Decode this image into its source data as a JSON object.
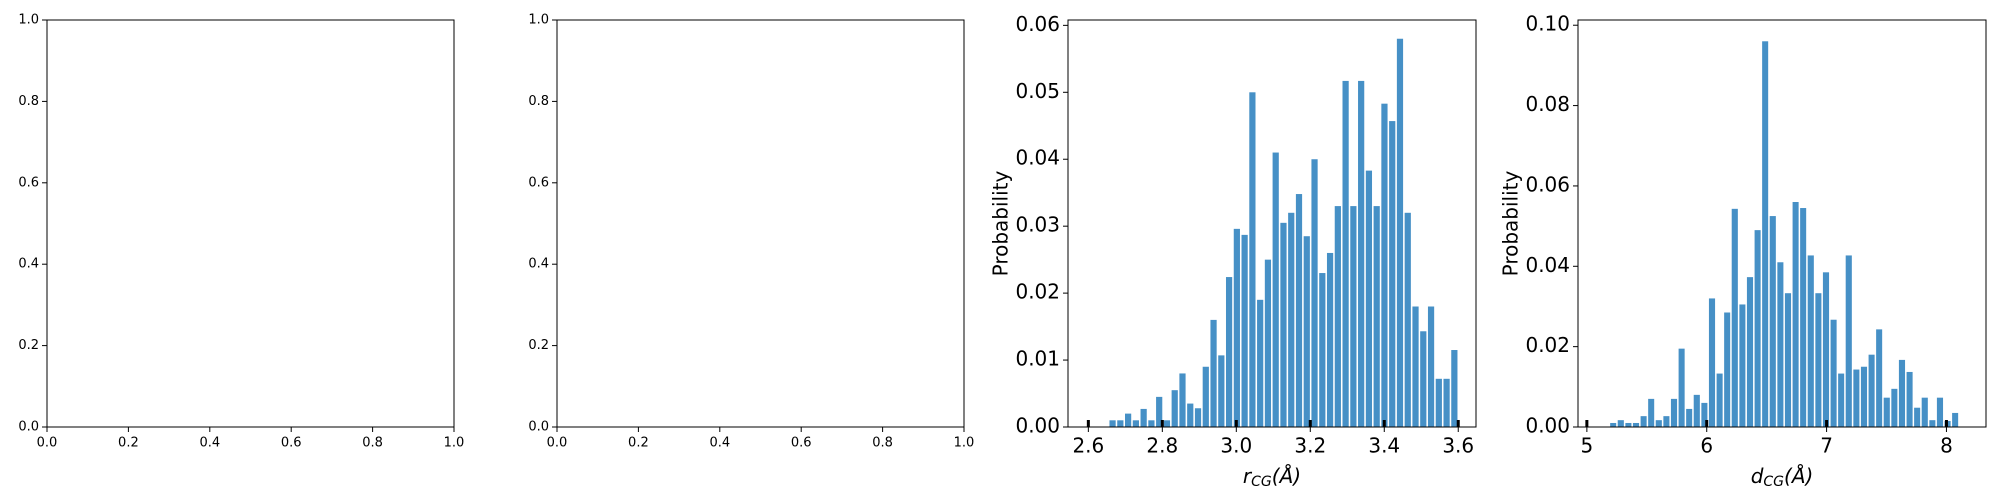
{
  "chart_data": [
    {
      "type": "empty",
      "xlim": [
        0,
        1
      ],
      "ylim": [
        0,
        1
      ],
      "xticks": [
        {
          "value": 0,
          "label": "0.0"
        },
        0.2,
        0.4,
        0.6,
        0.8,
        {
          "value": 1,
          "label": "1.0"
        }
      ],
      "yticks": [
        {
          "value": 0,
          "label": "0.0"
        },
        0.2,
        0.4,
        0.6,
        0.8,
        {
          "value": 1,
          "label": "1.0"
        }
      ]
    },
    {
      "type": "empty",
      "xlim": [
        0,
        1
      ],
      "ylim": [
        0,
        1
      ],
      "xticks": [
        {
          "value": 0,
          "label": "0.0"
        },
        0.2,
        0.4,
        0.6,
        0.8,
        {
          "value": 1,
          "label": "1.0"
        }
      ],
      "yticks": [
        {
          "value": 0,
          "label": "0.0"
        },
        0.2,
        0.4,
        0.6,
        0.8,
        {
          "value": 1,
          "label": "1.0"
        }
      ]
    },
    {
      "type": "histogram",
      "color": "#4690c6",
      "xlabel": {
        "base": "r",
        "sub": "CG",
        "rest": "(Å)"
      },
      "ylabel": "Probability",
      "xlim": [
        2.545,
        3.648
      ],
      "ylim": [
        0,
        0.0608
      ],
      "xticks": [
        2.6,
        2.8,
        {
          "value": 3,
          "label": "3.0"
        },
        3.2,
        3.4,
        3.6
      ],
      "yticks": [
        {
          "value": 0,
          "label": "0.00"
        },
        0.01,
        0.02,
        0.03,
        0.04,
        0.05,
        0.06
      ],
      "bins": [
        2.655,
        2.676,
        2.697,
        2.718,
        2.739,
        2.76,
        2.781,
        2.802,
        2.823,
        2.844,
        2.865,
        2.886,
        2.907,
        2.928,
        2.949,
        2.97,
        2.991,
        3.012,
        3.033,
        3.054,
        3.075,
        3.096,
        3.117,
        3.138,
        3.159,
        3.18,
        3.201,
        3.222,
        3.243,
        3.264,
        3.285,
        3.306,
        3.327,
        3.348,
        3.369,
        3.39,
        3.411,
        3.432,
        3.453,
        3.474,
        3.495,
        3.516,
        3.537,
        3.558,
        3.579,
        3.6
      ],
      "values": [
        0.001,
        0.001,
        0.002,
        0.001,
        0.0027,
        0.001,
        0.0045,
        0.001,
        0.0055,
        0.008,
        0.0035,
        0.0028,
        0.009,
        0.016,
        0.0107,
        0.0224,
        0.0296,
        0.0287,
        0.05,
        0.019,
        0.025,
        0.041,
        0.0305,
        0.032,
        0.0348,
        0.0285,
        0.04,
        0.023,
        0.026,
        0.033,
        0.0517,
        0.033,
        0.0517,
        0.0383,
        0.033,
        0.0483,
        0.0457,
        0.058,
        0.032,
        0.018,
        0.0143,
        0.018,
        0.0072,
        0.0072,
        0.0115
      ]
    },
    {
      "type": "histogram",
      "color": "#4690c6",
      "xlabel": {
        "base": "d",
        "sub": "CG",
        "rest": "(Å)"
      },
      "ylabel": "Probability",
      "xlim": [
        4.926,
        8.33
      ],
      "ylim": [
        0,
        0.1013
      ],
      "xticks": [
        5,
        6,
        7,
        8
      ],
      "yticks": [
        {
          "value": 0,
          "label": "0.00"
        },
        0.02,
        0.04,
        0.06,
        0.08,
        {
          "value": 0.1,
          "label": "0.10"
        }
      ],
      "bins": [
        5.188,
        5.251,
        5.315,
        5.378,
        5.442,
        5.505,
        5.568,
        5.632,
        5.695,
        5.759,
        5.822,
        5.885,
        5.949,
        6.012,
        6.076,
        6.139,
        6.202,
        6.266,
        6.329,
        6.393,
        6.456,
        6.519,
        6.583,
        6.646,
        6.71,
        6.773,
        6.836,
        6.9,
        6.963,
        7.027,
        7.09,
        7.153,
        7.217,
        7.28,
        7.344,
        7.407,
        7.47,
        7.534,
        7.597,
        7.661,
        7.724,
        7.787,
        7.851,
        7.914,
        7.978,
        8.041,
        8.104
      ],
      "values": [
        0.001,
        0.0017,
        0.001,
        0.001,
        0.0027,
        0.007,
        0.0017,
        0.0027,
        0.007,
        0.0195,
        0.0045,
        0.008,
        0.006,
        0.032,
        0.0133,
        0.0285,
        0.0543,
        0.0305,
        0.0373,
        0.049,
        0.096,
        0.0525,
        0.041,
        0.0333,
        0.056,
        0.0545,
        0.0427,
        0.0333,
        0.0385,
        0.0267,
        0.0133,
        0.0427,
        0.0143,
        0.015,
        0.018,
        0.0243,
        0.0073,
        0.0095,
        0.0167,
        0.0137,
        0.0048,
        0.0073,
        0.0017,
        0.0073,
        0.0015,
        0.0035
      ]
    }
  ]
}
